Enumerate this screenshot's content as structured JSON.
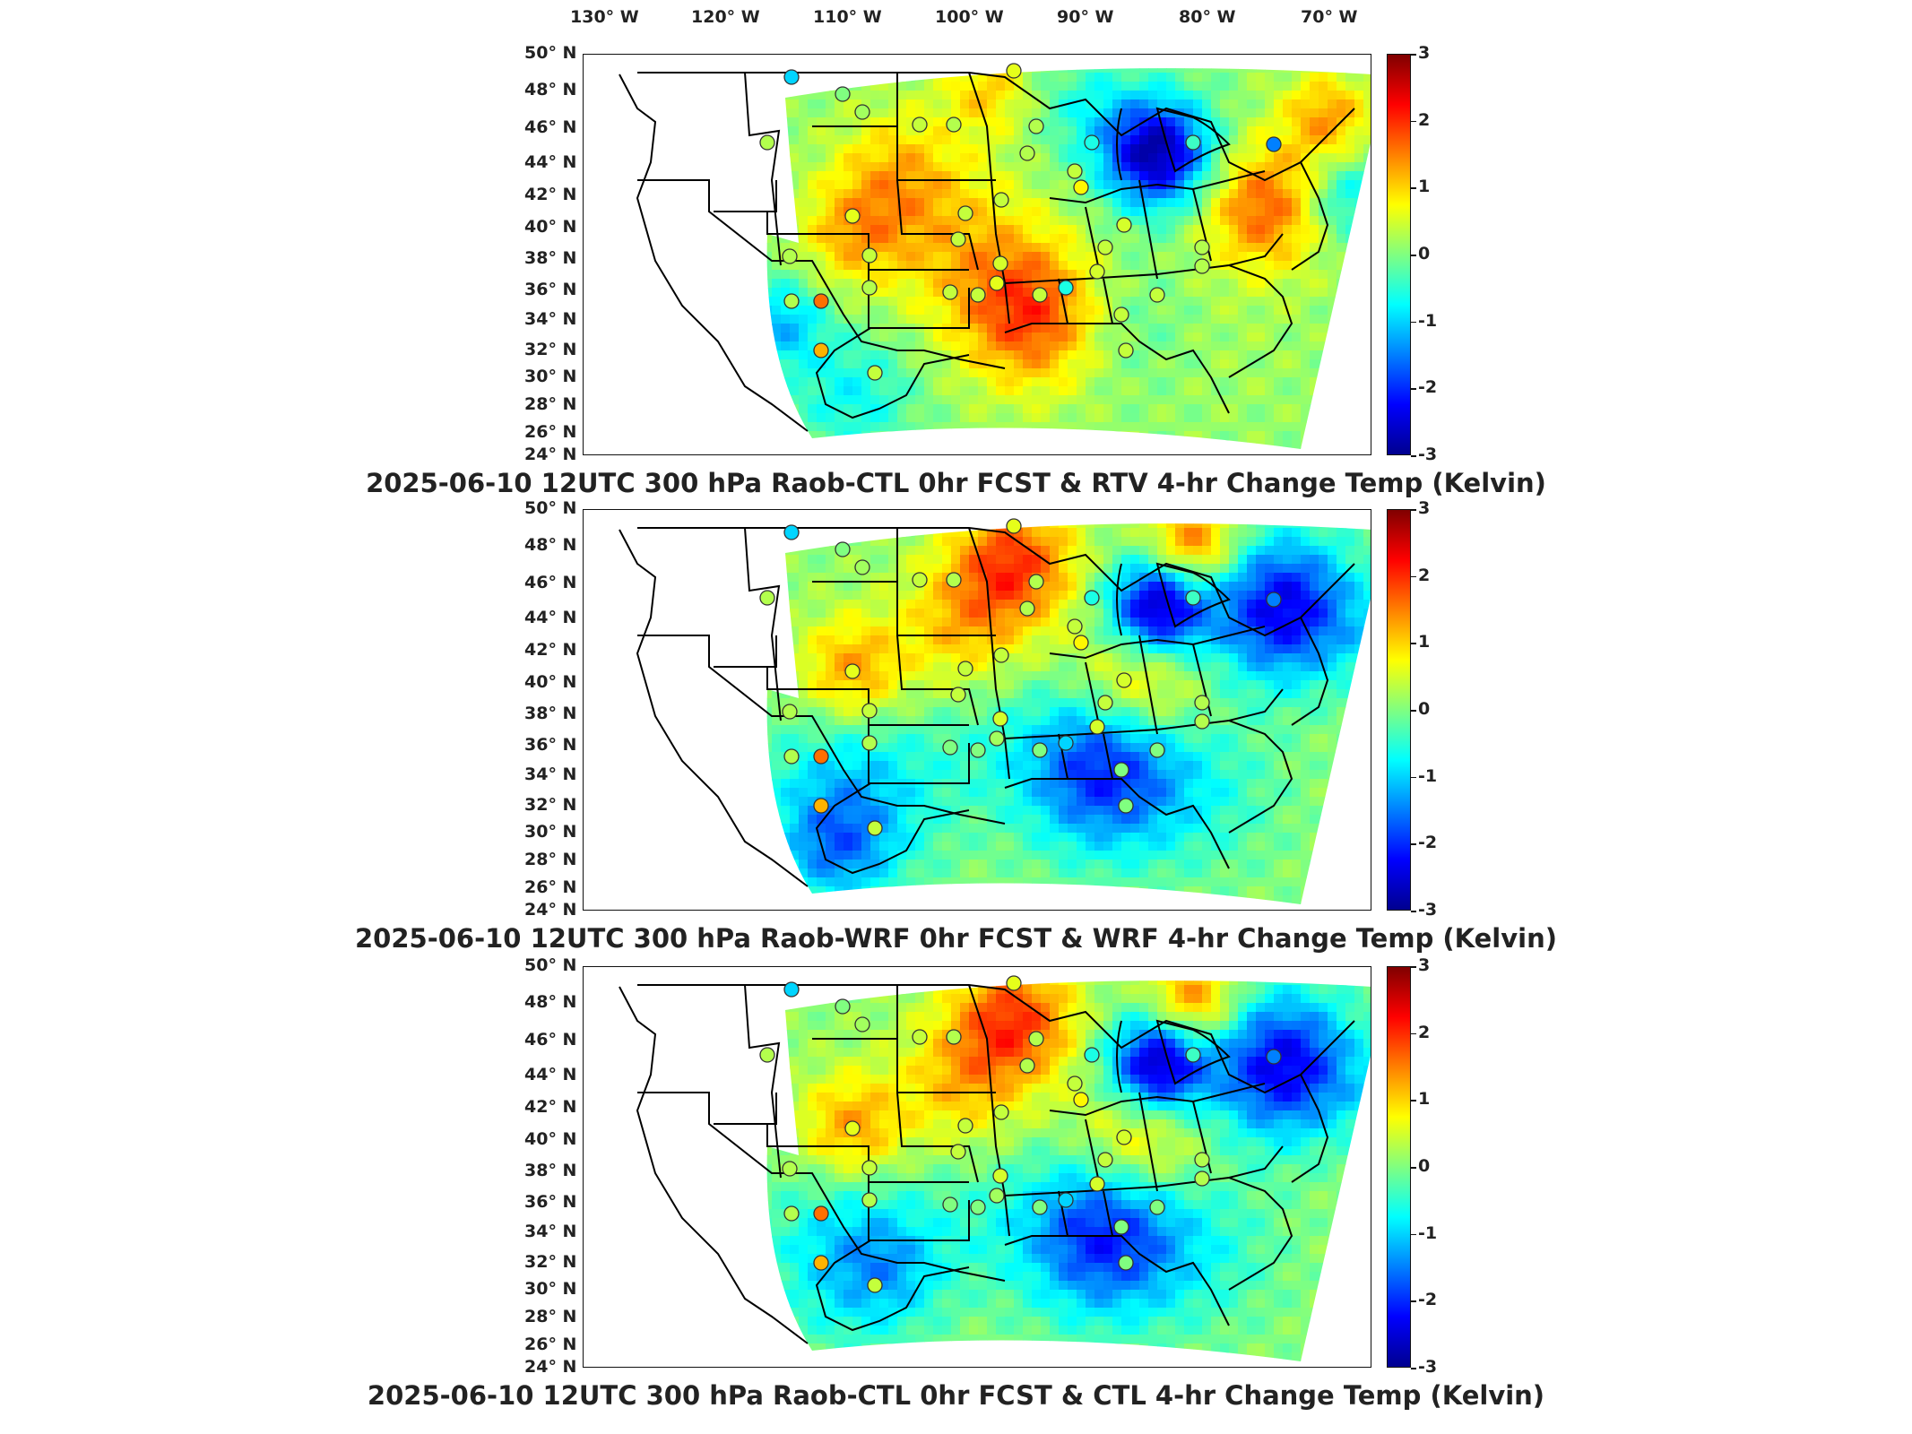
{
  "lon_labels": [
    "130° W",
    "120° W",
    "110° W",
    "100° W",
    "90° W",
    "80° W",
    "70° W"
  ],
  "lat_labels": [
    "50° N",
    "48° N",
    "46° N",
    "44° N",
    "42° N",
    "40° N",
    "38° N",
    "36° N",
    "34° N",
    "32° N",
    "30° N",
    "28° N",
    "26° N",
    "24° N"
  ],
  "colorbar": {
    "ticks": [
      "3",
      "2",
      "1",
      "0",
      "-1",
      "-2",
      "-3"
    ],
    "range": [
      -3,
      3
    ]
  },
  "panels": [
    {
      "title": "2025-06-10 12UTC 300 hPa Raob-CTL 0hr FCST & RTV 4-hr Change Temp (Kelvin)",
      "variant": "rtv"
    },
    {
      "title": "2025-06-10 12UTC 300 hPa Raob-WRF 0hr FCST & WRF 4-hr Change Temp (Kelvin)",
      "variant": "wrf"
    },
    {
      "title": "2025-06-10 12UTC 300 hPa Raob-CTL 0hr FCST & CTL 4-hr Change Temp (Kelvin)",
      "variant": "ctl"
    }
  ],
  "colors": {
    "outline": "#000000",
    "station_stroke": "#333333"
  }
}
